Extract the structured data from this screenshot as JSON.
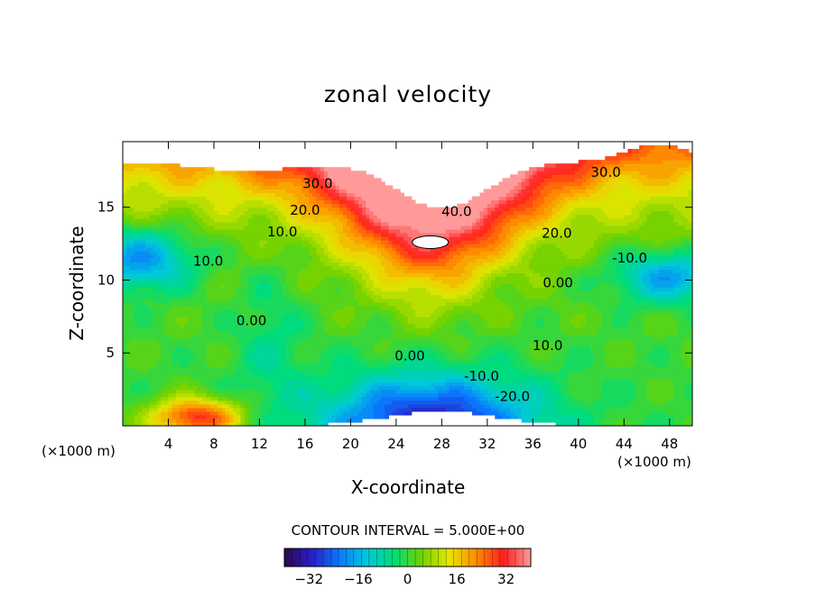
{
  "chart_data": {
    "type": "heatmap",
    "title": "zonal velocity",
    "xlabel": "X-coordinate",
    "ylabel": "Z-coordinate",
    "x_unit_left": "(×1000 m)",
    "x_unit_right": "(×1000 m)",
    "xlim": [
      0,
      50
    ],
    "ylim": [
      0,
      19.5
    ],
    "x_ticks": [
      4,
      8,
      12,
      16,
      20,
      24,
      28,
      32,
      36,
      40,
      44,
      48
    ],
    "y_ticks": [
      5,
      10,
      15
    ],
    "contour_interval_label": "CONTOUR INTERVAL = 5.000E+00",
    "contour_labels": [
      {
        "text": "30.0",
        "x": 17.1,
        "z": 16.3
      },
      {
        "text": "20.0",
        "x": 16.0,
        "z": 14.5
      },
      {
        "text": "10.0",
        "x": 14.0,
        "z": 13.0
      },
      {
        "text": "10.0",
        "x": 7.5,
        "z": 11.0
      },
      {
        "text": "0.00",
        "x": 11.3,
        "z": 6.9
      },
      {
        "text": "40.0",
        "x": 29.3,
        "z": 14.4
      },
      {
        "text": "30.0",
        "x": 42.4,
        "z": 17.1
      },
      {
        "text": "20.0",
        "x": 38.1,
        "z": 12.9
      },
      {
        "text": "-10.0",
        "x": 44.5,
        "z": 11.2
      },
      {
        "text": "0.00",
        "x": 38.2,
        "z": 9.5
      },
      {
        "text": "10.0",
        "x": 37.3,
        "z": 5.2
      },
      {
        "text": "0.00",
        "x": 25.2,
        "z": 4.5
      },
      {
        "text": "-10.0",
        "x": 31.5,
        "z": 3.1
      },
      {
        "text": "-20.0",
        "x": 34.2,
        "z": 1.7
      }
    ],
    "colorbar": {
      "ticks": [
        -32,
        -16,
        0,
        16,
        32
      ],
      "tick_labels": [
        "−32",
        "−16",
        "0",
        "16",
        "32"
      ],
      "range": [
        -40,
        40
      ]
    },
    "features": [
      {
        "kind": "jet",
        "value": 40,
        "x": 24,
        "z": 16.5
      },
      {
        "kind": "core",
        "value": -32,
        "x": 27,
        "z": 0.3
      },
      {
        "kind": "core",
        "value": -22,
        "x": 1.5,
        "z": 11.5
      },
      {
        "kind": "core",
        "value": -20,
        "x": 48,
        "z": 10.3
      },
      {
        "kind": "core",
        "value": 30,
        "x": 6.5,
        "z": 0.8
      }
    ]
  },
  "colors": {
    "colormap": [
      "#2a0a4a",
      "#2a1ec8",
      "#0a78ff",
      "#00c8dc",
      "#00dc78",
      "#6ed200",
      "#e6e600",
      "#ff8c00",
      "#ff1e1e",
      "#ff9a9a"
    ]
  }
}
